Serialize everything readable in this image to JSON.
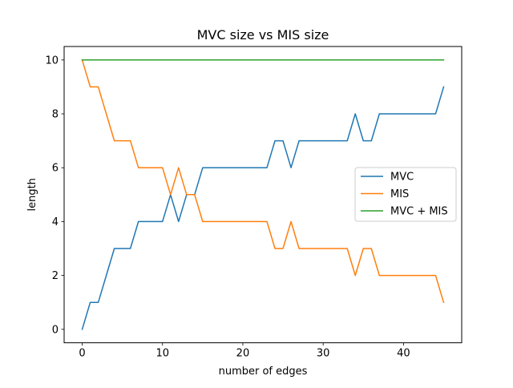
{
  "chart_data": {
    "type": "line",
    "title": "MVC size vs MIS size",
    "xlabel": "number of edges",
    "ylabel": "length",
    "xlim": [
      -2.25,
      47.25
    ],
    "ylim": [
      -0.5,
      10.5
    ],
    "xticks": [
      0,
      10,
      20,
      30,
      40
    ],
    "yticks": [
      0,
      2,
      4,
      6,
      8,
      10
    ],
    "grid": false,
    "legend_position": "center-right",
    "x": [
      0,
      1,
      2,
      3,
      4,
      5,
      6,
      7,
      8,
      9,
      10,
      11,
      12,
      13,
      14,
      15,
      16,
      17,
      18,
      19,
      20,
      21,
      22,
      23,
      24,
      25,
      26,
      27,
      28,
      29,
      30,
      31,
      32,
      33,
      34,
      35,
      36,
      37,
      38,
      39,
      40,
      41,
      42,
      43,
      44,
      45
    ],
    "series": [
      {
        "name": "MVC",
        "color": "#1f77b4",
        "values": [
          0,
          1,
          1,
          2,
          3,
          3,
          3,
          4,
          4,
          4,
          4,
          5,
          4,
          5,
          5,
          6,
          6,
          6,
          6,
          6,
          6,
          6,
          6,
          6,
          7,
          7,
          6,
          7,
          7,
          7,
          7,
          7,
          7,
          7,
          8,
          7,
          7,
          8,
          8,
          8,
          8,
          8,
          8,
          8,
          8,
          9
        ]
      },
      {
        "name": "MIS",
        "color": "#ff7f0e",
        "values": [
          10,
          9,
          9,
          8,
          7,
          7,
          7,
          6,
          6,
          6,
          6,
          5,
          6,
          5,
          5,
          4,
          4,
          4,
          4,
          4,
          4,
          4,
          4,
          4,
          3,
          3,
          4,
          3,
          3,
          3,
          3,
          3,
          3,
          3,
          2,
          3,
          3,
          2,
          2,
          2,
          2,
          2,
          2,
          2,
          2,
          1
        ]
      },
      {
        "name": "MVC + MIS",
        "color": "#2ca02c",
        "values": [
          10,
          10,
          10,
          10,
          10,
          10,
          10,
          10,
          10,
          10,
          10,
          10,
          10,
          10,
          10,
          10,
          10,
          10,
          10,
          10,
          10,
          10,
          10,
          10,
          10,
          10,
          10,
          10,
          10,
          10,
          10,
          10,
          10,
          10,
          10,
          10,
          10,
          10,
          10,
          10,
          10,
          10,
          10,
          10,
          10,
          10
        ]
      }
    ]
  }
}
